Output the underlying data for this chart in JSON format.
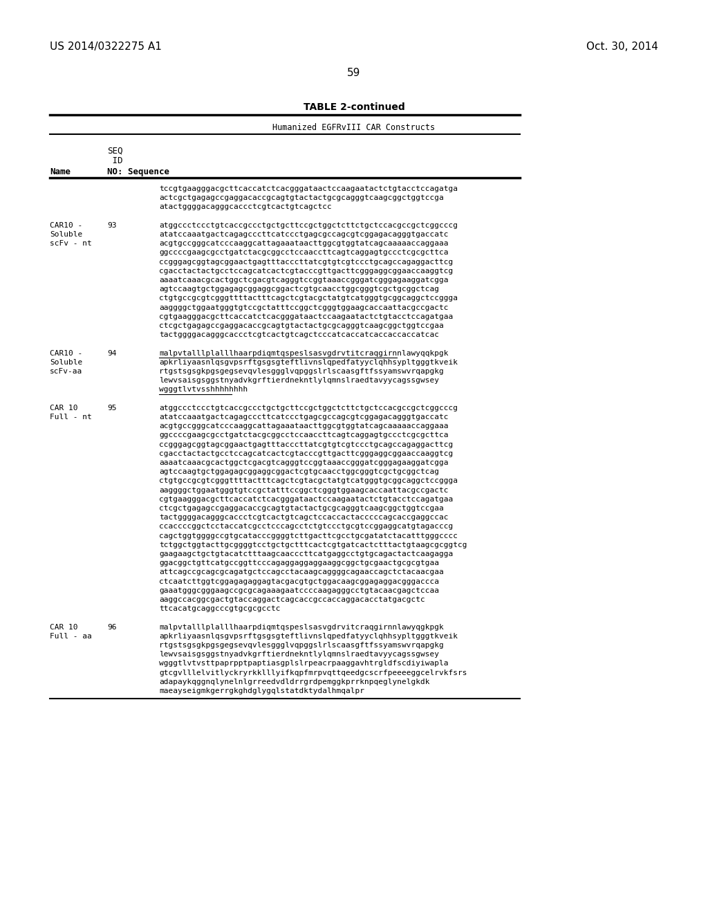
{
  "page_header_left": "US 2014/0322275 A1",
  "page_header_right": "Oct. 30, 2014",
  "page_number": "59",
  "table_title": "TABLE 2-continued",
  "table_subtitle": "Humanized EGFRvIII CAR Constructs",
  "background_color": "#ffffff",
  "content_blocks": [
    {
      "name_lines": [],
      "seq_id": "",
      "seq_lines": [
        "tccgtgaagggacgcttcaccatctcacgggataactccaagaatactctgtacctccagatga",
        "actcgctgagagccgaggacaccgcagtgtactactgcgcagggtcaagcggctggtccga",
        "atactggggacagggcaccctcgtcactgtcagctcc"
      ]
    },
    {
      "name_lines": [
        "CAR10 -",
        "Soluble",
        "scFv - nt"
      ],
      "seq_id": "93",
      "seq_lines": [
        "atggccctccctgtcaccgccctgctgcttccgctggctcttctgctccacgccgctcggcccg",
        "atatccaaatgactcagagcccttcatccctgagcgccagcgtcggagacagggtgaccatc",
        "acgtgccgggcatcccaaggcattagaaataacttggcgtggtatcagcaaaaaccaggaaa",
        "ggccccgaagcgcctgatctacgcggcctccaaccttcagtcaggagtgccctcgcgcttca",
        "ccgggagcggtagcggaactgagtttacccttatcgtgtcgtccctgcagccagaggacttcg",
        "cgacctactactgcctccagcatcactcgtacccgttgacttcgggaggcggaaccaaggtcg",
        "aaaatcaaacgcactggctcgacgtcagggtccggtaaaccgggatcgggagaaggatcgga",
        "agtccaagtgctggagagcggaggcggactcgtgcaacctggcgggtcgctgcggctcag",
        "ctgtgccgcgtcgggttttactttcagctcgtacgctatgtcatgggtgcggcaggctccggga",
        "aaggggctggaatgggtgtccgctatttccggctcgggtggaagcaccaattacgccgactc",
        "cgtgaagggacgcttcaccatctcacgggataactccaagaatactctgtacctccagatgaa",
        "ctcgctgagagccgaggacaccgcagtgtactactgcgcagggtcaagcggctggtccgaa",
        "tactggggacagggcaccctcgtcactgtcagctcccatcaccatcaccaccaccatcac"
      ]
    },
    {
      "name_lines": [
        "CAR10 -",
        "Soluble",
        "scFv-aa"
      ],
      "seq_id": "94",
      "underline_first": true,
      "seq_lines": [
        "malpvtalllplalllhaarpdiqmtqspeslsasvgdrvtitcraqgirnnlawyqqkpgk",
        "apkrliyaasnlqsgvpsrftgsgsgteftlivnslqpedfatyyclqhhsypltgggtkveik",
        "rtgstsgsgkpgsgegsevqvlesggglvqpggslrlscaasgftfssyamswvrqapgkg",
        "lewvsaisgsggstnyadvkgrftierdnekntlylqmnslraedtavyycagssgwsey",
        "wgggtlvtvsshhhhhhhh"
      ]
    },
    {
      "name_lines": [
        "CAR 10",
        "Full - nt"
      ],
      "seq_id": "95",
      "seq_lines": [
        "atggccctccctgtcaccgccctgctgcttccgctggctcttctgctccacgccgctcggcccg",
        "atatccaaatgactcagagcccttcatccctgagcgccagcgtcggagacagggtgaccatc",
        "acgtgccgggcatcccaaggcattagaaataacttggcgtggtatcagcaaaaaccaggaaa",
        "ggccccgaagcgcctgatctacgcggcctccaaccttcagtcaggagtgccctcgcgcttca",
        "ccgggagcggtagcggaactgagtttacccttatcgtgtcgtccctgcagccagaggacttcg",
        "cgacctactactgcctccagcatcactcgtacccgttgacttcgggaggcggaaccaaggtcg",
        "aaaatcaaacgcactggctcgacgtcagggtccggtaaaccgggatcgggagaaggatcgga",
        "agtccaagtgctggagagcggaggcggactcgtgcaacctggcgggtcgctgcggctcag",
        "ctgtgccgcgtcgggttttactttcagctcgtacgctatgtcatgggtgcggcaggctccggga",
        "aaggggctggaatgggtgtccgctatttccggctcgggtggaagcaccaattacgccgactc",
        "cgtgaagggacgcttcaccatctcacgggataactccaagaatactctgtacctccagatgaa",
        "ctcgctgagagccgaggacaccgcagtgtactactgcgcagggtcaagcggctggtccgaa",
        "tactggggacagggcaccctcgtcactgtcagctccaccactacccccagcaccgaggccac",
        "ccaccccggctcctaccatcgcctcccagcctctgtccctgcgtccggaggcatgtagacccg",
        "cagctggtggggccgtgcatacccggggtcttgacttcgcctgcgatatctacatttgggcccc",
        "tctggctggtacttgcggggtcctgctgctttcactcgtgatcactctttactgtaagcgcggtcg",
        "gaagaagctgctgtacatctttaagcaacccttcatgaggcctgtgcagactactcaagagga",
        "ggacggctgttcatgccggttcccagaggaggaggaaggcggctgcgaactgcgcgtgaa",
        "attcagccgcagcgcagatgctccagcctacaagcaggggcagaaccagctctacaacgaa",
        "ctcaatcttggtcggagagaggagtacgacgtgctggacaagcggagaggacgggaccca",
        "gaaatgggcgggaagccgcgcagaaagaatccccaagagggcctgtacaacgagctccaa",
        "aaggccacggcgactgtaccaggactcagcaccgccaccaggacacctatgacgctc",
        "ttcacatgcaggcccgtgcgcgcctc"
      ]
    },
    {
      "name_lines": [
        "CAR 10",
        "Full - aa"
      ],
      "seq_id": "96",
      "seq_lines": [
        "malpvtalllplalllhaarpdiqmtqspeslsasvgdrvitcraqgirnnlawyqgkpgk",
        "apkrliyaasnlqsgvpsrftgsgsgteftlivnslqpedfatyyclqhhsypltgggtkveik",
        "rtgstsgsgkpgsgegsevqvlesggglvqpggslrlscaasgftfssyamswvrqapgkg",
        "lewvsaisgsggstnyadvkgrftierdnekntlylqmnslraedtavyycagssgwsey",
        "wgggtlvtvsttpaprpptpaptiasgplslrpeacrpaaggavhtrgldfscdiyiwapla",
        "gtcgvlllelvitlyckryrkklllyifkqpfmrpvqttqeedgcscrfpeeeeggcelrvkfsrs",
        "adapaykqggnqlynelnlgrreedvdldrrgrdpemggkprrknpqeglynelgkdk",
        "maeayseigmkgerrgkghdglygqlstatdktydalhmqalpr"
      ]
    }
  ]
}
